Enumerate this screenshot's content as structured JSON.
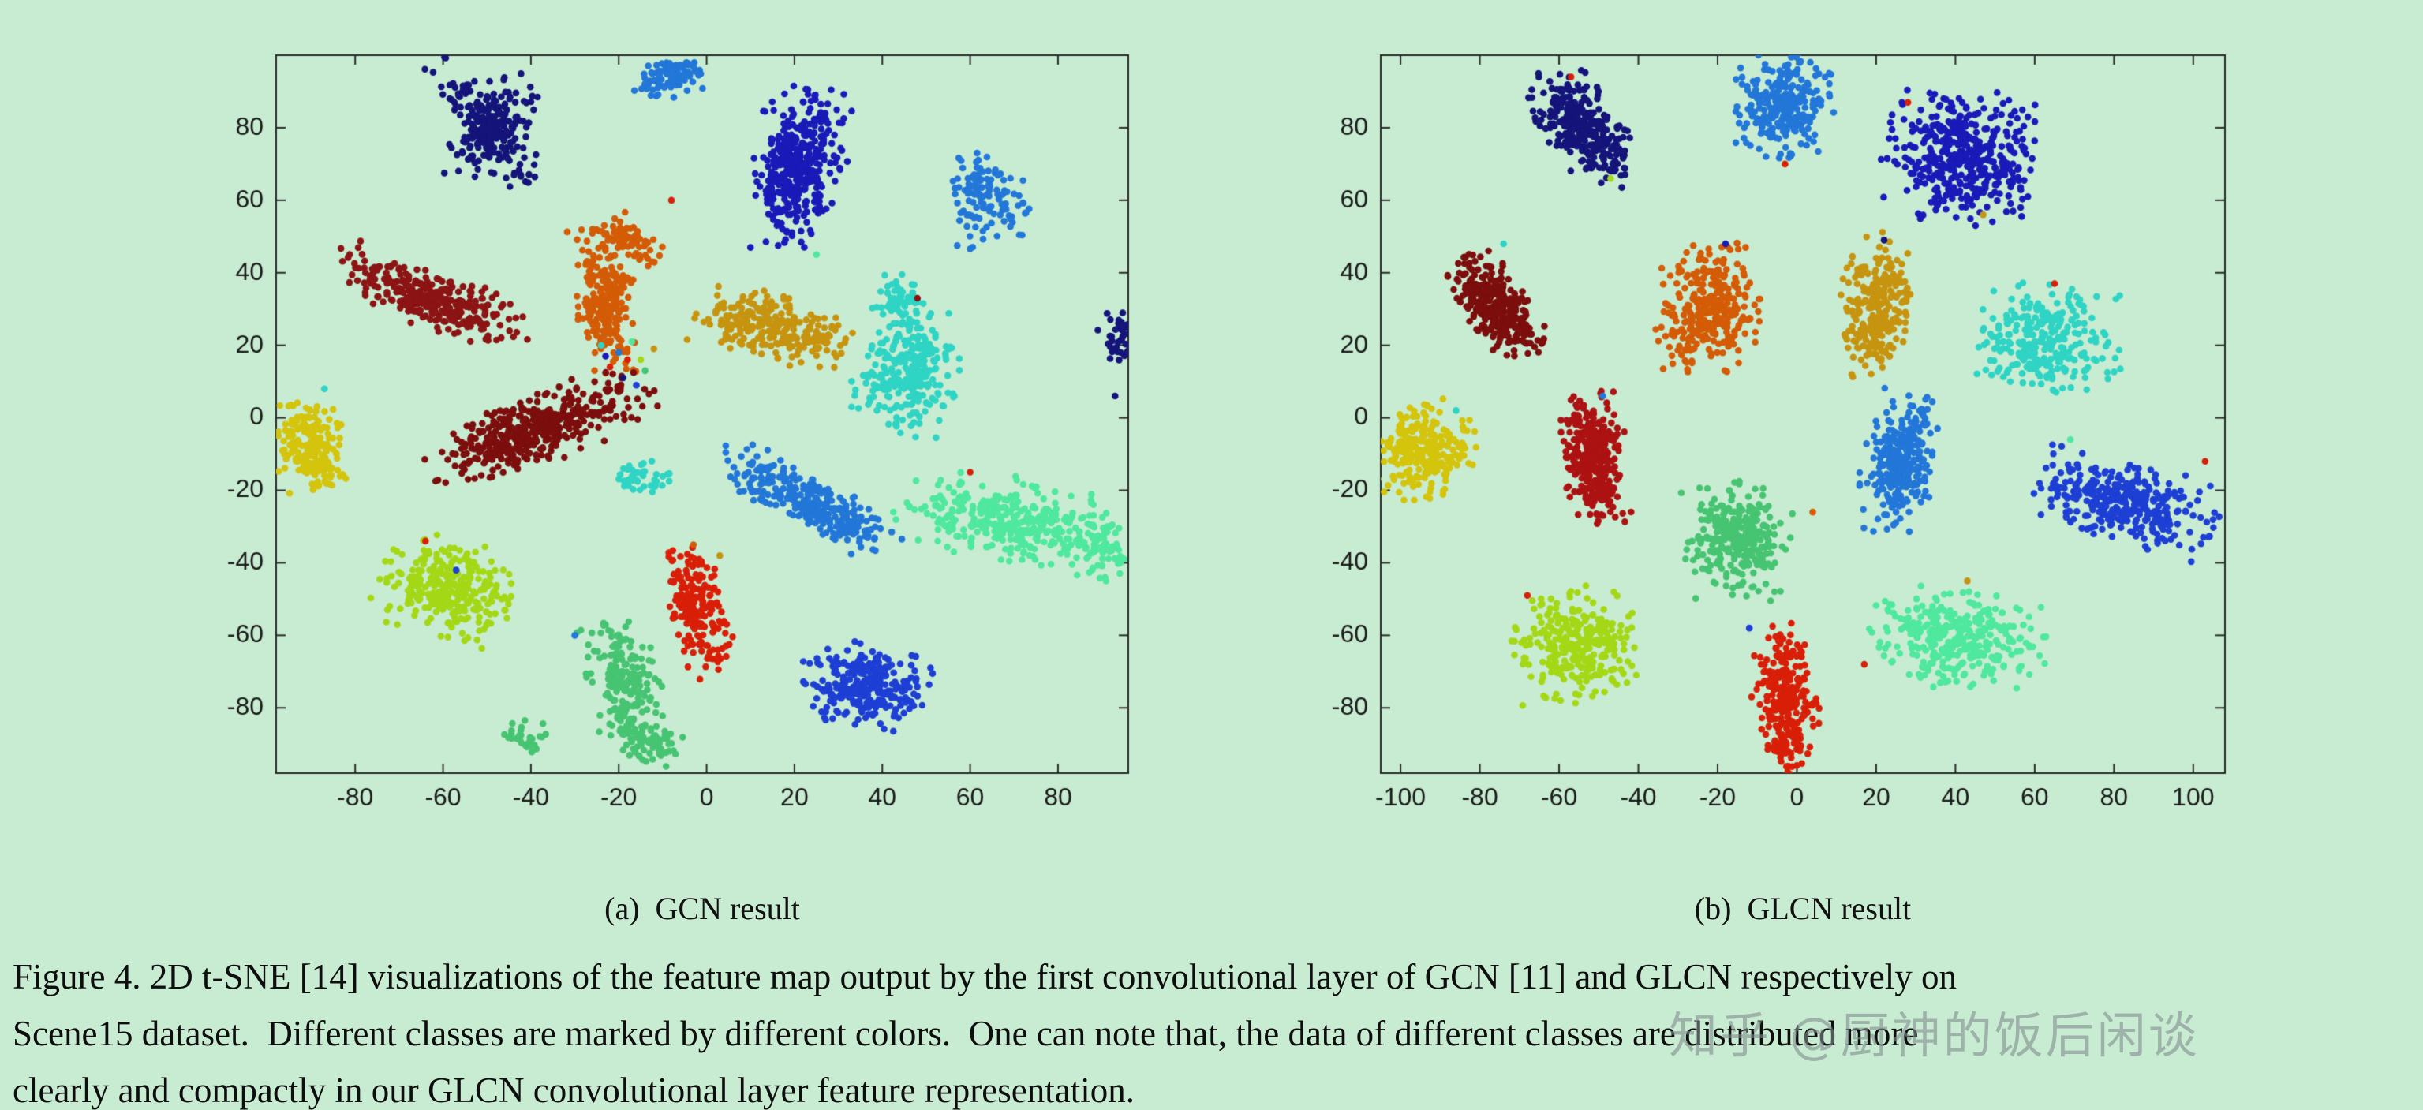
{
  "page": {
    "background": "#c8ecd2"
  },
  "figure": {
    "caption_lines": [
      "Figure 4. 2D t-SNE [14] visualizations of the feature map output by the first convolutional layer of GCN [11] and GLCN respectively on",
      "Scene15 dataset.  Different classes are marked by different colors.  One can note that, the data of different classes are distributed more",
      "clearly and compactly in our GLCN convolutional layer feature representation."
    ],
    "watermark": "知乎 @厨神的饭后闲谈"
  },
  "chart_data": [
    {
      "type": "scatter",
      "title": "(a)  GCN result",
      "xlabel": "",
      "ylabel": "",
      "xlim": [
        -98,
        96
      ],
      "ylim": [
        -98,
        100
      ],
      "xticks": [
        -80,
        -60,
        -40,
        -20,
        0,
        20,
        40,
        60,
        80
      ],
      "yticks": [
        -80,
        -60,
        -40,
        -20,
        0,
        20,
        40,
        60,
        80
      ],
      "grid": false,
      "legend": "none",
      "point_radius": 4.3,
      "clusters": [
        {
          "class": "navy-x-arm1",
          "color": "#14147a",
          "cx": -50,
          "cy": 81,
          "sx": 9,
          "sy": 3,
          "angle": -56,
          "n": 150
        },
        {
          "class": "navy-x-arm2",
          "color": "#14147a",
          "cx": -49,
          "cy": 79,
          "sx": 8,
          "sy": 3,
          "angle": 52,
          "n": 130
        },
        {
          "class": "dodger-top",
          "color": "#2277d8",
          "cx": -8,
          "cy": 94,
          "sx": 4.5,
          "sy": 2.5,
          "angle": 25,
          "n": 90
        },
        {
          "class": "darkblue-main",
          "color": "#1a1ab9",
          "cx": 21,
          "cy": 69,
          "sx": 4.5,
          "sy": 9.5,
          "angle": -8,
          "n": 400
        },
        {
          "class": "blue-upper-right",
          "color": "#2277d8",
          "cx": 64,
          "cy": 60,
          "sx": 4,
          "sy": 6,
          "angle": 10,
          "n": 120
        },
        {
          "class": "orange-bar",
          "color": "#d45c06",
          "cx": -23,
          "cy": 32,
          "sx": 3,
          "sy": 9,
          "angle": 5,
          "n": 230
        },
        {
          "class": "orange-hook",
          "color": "#d45c06",
          "cx": -18,
          "cy": 49,
          "sx": 4,
          "sy": 2.5,
          "angle": -35,
          "n": 80
        },
        {
          "class": "maroon-upper",
          "color": "#8c1414",
          "cx": -63,
          "cy": 33,
          "sx": 11,
          "sy": 3.5,
          "angle": -25,
          "n": 300
        },
        {
          "class": "goldenrod",
          "color": "#c79410",
          "cx": 15,
          "cy": 25,
          "sx": 8,
          "sy": 4,
          "angle": -15,
          "n": 260
        },
        {
          "class": "maroon-big",
          "color": "#7d0e0e",
          "cx": -38,
          "cy": -3,
          "sx": 12,
          "sy": 4,
          "angle": 25,
          "n": 430
        },
        {
          "class": "cyan-main",
          "color": "#2fd4c4",
          "cx": 46,
          "cy": 13,
          "sx": 5,
          "sy": 8,
          "angle": -15,
          "n": 270
        },
        {
          "class": "cyan-tail",
          "color": "#2fd4c4",
          "cx": 44,
          "cy": 32,
          "sx": 3,
          "sy": 3.5,
          "angle": 0,
          "n": 60
        },
        {
          "class": "yellow-left",
          "color": "#d4c40c",
          "cx": -90,
          "cy": -8,
          "sx": 4,
          "sy": 6.5,
          "angle": 20,
          "n": 200
        },
        {
          "class": "cyan-blob",
          "color": "#2fd4c4",
          "cx": -14,
          "cy": -17,
          "sx": 3,
          "sy": 2.5,
          "angle": 0,
          "n": 40
        },
        {
          "class": "blue-mid",
          "color": "#2277d8",
          "cx": 23,
          "cy": -23,
          "sx": 10,
          "sy": 3,
          "angle": -34,
          "n": 300
        },
        {
          "class": "springgreen-right",
          "color": "#4fe89e",
          "cx": 69,
          "cy": -28,
          "sx": 11,
          "sy": 5,
          "angle": -15,
          "n": 340
        },
        {
          "class": "springgreen-tail",
          "color": "#4fe89e",
          "cx": 89,
          "cy": -36,
          "sx": 3,
          "sy": 5,
          "angle": 10,
          "n": 70
        },
        {
          "class": "greenyellow",
          "color": "#a4d816",
          "cx": -59,
          "cy": -47,
          "sx": 7,
          "sy": 6,
          "angle": -25,
          "n": 290
        },
        {
          "class": "red-bar",
          "color": "#d91f08",
          "cx": -2,
          "cy": -52,
          "sx": 3,
          "sy": 9,
          "angle": 10,
          "n": 200
        },
        {
          "class": "royal-bottom",
          "color": "#1e3fd4",
          "cx": 36,
          "cy": -74,
          "sx": 6.5,
          "sy": 5,
          "angle": -20,
          "n": 270
        },
        {
          "class": "green-comma",
          "color": "#46c472",
          "cx": -19,
          "cy": -72,
          "sx": 3.5,
          "sy": 8,
          "angle": 15,
          "n": 190
        },
        {
          "class": "green-hook",
          "color": "#46c472",
          "cx": -14,
          "cy": -89,
          "sx": 4.5,
          "sy": 2.5,
          "angle": -25,
          "n": 80
        },
        {
          "class": "green-blob",
          "color": "#46c472",
          "cx": -41,
          "cy": -88,
          "sx": 2.5,
          "sy": 2,
          "angle": 0,
          "n": 28
        },
        {
          "class": "navy-right-edge",
          "color": "#14147a",
          "cx": 95,
          "cy": 22,
          "sx": 2.5,
          "sy": 4,
          "angle": 0,
          "n": 55
        }
      ],
      "outliers": [
        [
          -20,
          18,
          "#2277d8"
        ],
        [
          -17,
          21,
          "#4fe89e"
        ],
        [
          -22,
          14,
          "#d91f08"
        ],
        [
          -15,
          16,
          "#a4d816"
        ],
        [
          -19,
          11,
          "#14147a"
        ],
        [
          -24,
          20,
          "#2fd4c4"
        ],
        [
          -12,
          19,
          "#c79410"
        ],
        [
          -21,
          24,
          "#d45c06"
        ],
        [
          -16,
          9,
          "#1e3fd4"
        ],
        [
          -14,
          13,
          "#46c472"
        ],
        [
          -18,
          16,
          "#d91f08"
        ],
        [
          -23,
          17,
          "#1a1ab9"
        ],
        [
          -87,
          8,
          "#2fd4c4"
        ],
        [
          -64,
          -34,
          "#d91f08"
        ],
        [
          -57,
          -42,
          "#1e3fd4"
        ],
        [
          3,
          -38,
          "#c79410"
        ],
        [
          -3,
          -35,
          "#d45c06"
        ],
        [
          48,
          33,
          "#8c1414"
        ],
        [
          -8,
          60,
          "#d91f08"
        ],
        [
          25,
          45,
          "#4fe89e"
        ],
        [
          60,
          -15,
          "#d91f08"
        ],
        [
          -30,
          -60,
          "#2277d8"
        ],
        [
          93,
          6,
          "#14147a"
        ],
        [
          10,
          47,
          "#1a1ab9"
        ]
      ]
    },
    {
      "type": "scatter",
      "title": "(b)  GLCN result",
      "xlabel": "",
      "ylabel": "",
      "xlim": [
        -105,
        108
      ],
      "ylim": [
        -98,
        100
      ],
      "xticks": [
        -100,
        -80,
        -60,
        -40,
        -20,
        0,
        20,
        40,
        60,
        80,
        100
      ],
      "yticks": [
        -80,
        -60,
        -40,
        -20,
        0,
        20,
        40,
        60,
        80
      ],
      "grid": false,
      "legend": "none",
      "point_radius": 4.3,
      "clusters": [
        {
          "class": "navy",
          "color": "#14147a",
          "cx": -54,
          "cy": 80,
          "sx": 8,
          "sy": 4,
          "angle": -55,
          "n": 310
        },
        {
          "class": "dodger-top",
          "color": "#2277d8",
          "cx": -4,
          "cy": 86,
          "sx": 5.5,
          "sy": 6.5,
          "angle": -20,
          "n": 270
        },
        {
          "class": "darkblue",
          "color": "#1a1ab9",
          "cx": 42,
          "cy": 72,
          "sx": 8.5,
          "sy": 8,
          "angle": -10,
          "n": 430
        },
        {
          "class": "maroon",
          "color": "#7d0e0e",
          "cx": -76,
          "cy": 31,
          "sx": 7,
          "sy": 3.5,
          "angle": -55,
          "n": 340
        },
        {
          "class": "orange",
          "color": "#d45c06",
          "cx": -22,
          "cy": 30,
          "sx": 6,
          "sy": 8,
          "angle": 0,
          "n": 300
        },
        {
          "class": "goldenrod",
          "color": "#c79410",
          "cx": 20,
          "cy": 31,
          "sx": 4,
          "sy": 8.5,
          "angle": -5,
          "n": 250
        },
        {
          "class": "cyan",
          "color": "#2fd4c4",
          "cx": 63,
          "cy": 21,
          "sx": 8,
          "sy": 7,
          "angle": 0,
          "n": 280
        },
        {
          "class": "brickred",
          "color": "#ad1212",
          "cx": -51,
          "cy": -11,
          "sx": 3.5,
          "sy": 8,
          "angle": 5,
          "n": 330
        },
        {
          "class": "yellow",
          "color": "#d4c40c",
          "cx": -94,
          "cy": -9,
          "sx": 5.5,
          "sy": 6,
          "angle": 0,
          "n": 240
        },
        {
          "class": "blue-mid",
          "color": "#2277d8",
          "cx": 26,
          "cy": -12,
          "sx": 4,
          "sy": 8.5,
          "angle": -10,
          "n": 300
        },
        {
          "class": "royal-right",
          "color": "#1e3fd4",
          "cx": 83,
          "cy": -23,
          "sx": 10,
          "sy": 5,
          "angle": -20,
          "n": 340
        },
        {
          "class": "green-mid",
          "color": "#46c472",
          "cx": -15,
          "cy": -34,
          "sx": 6,
          "sy": 7,
          "angle": 0,
          "n": 290
        },
        {
          "class": "greenyellow",
          "color": "#a4d816",
          "cx": -56,
          "cy": -63,
          "sx": 7,
          "sy": 7,
          "angle": 10,
          "n": 300
        },
        {
          "class": "springgreen",
          "color": "#4fe89e",
          "cx": 40,
          "cy": -61,
          "sx": 10,
          "sy": 6,
          "angle": -8,
          "n": 330
        },
        {
          "class": "red",
          "color": "#d91f08",
          "cx": -3,
          "cy": -77,
          "sx": 3.5,
          "sy": 9,
          "angle": 5,
          "n": 280
        }
      ],
      "outliers": [
        [
          -47,
          66,
          "#a4d816"
        ],
        [
          -57,
          94,
          "#d91f08"
        ],
        [
          -3,
          70,
          "#d91f08"
        ],
        [
          28,
          87,
          "#d91f08"
        ],
        [
          47,
          56,
          "#c79410"
        ],
        [
          -74,
          48,
          "#2fd4c4"
        ],
        [
          -18,
          48,
          "#1a1ab9"
        ],
        [
          22,
          49,
          "#14147a"
        ],
        [
          65,
          37,
          "#d91f08"
        ],
        [
          -49,
          6,
          "#2277d8"
        ],
        [
          4,
          -26,
          "#d45c06"
        ],
        [
          17,
          -68,
          "#d91f08"
        ],
        [
          -12,
          -58,
          "#1e3fd4"
        ],
        [
          43,
          -45,
          "#c79410"
        ],
        [
          103,
          -12,
          "#d91f08"
        ],
        [
          69,
          -6,
          "#4fe89e"
        ],
        [
          -68,
          -49,
          "#d91f08"
        ],
        [
          -86,
          2,
          "#2fd4c4"
        ]
      ]
    }
  ]
}
